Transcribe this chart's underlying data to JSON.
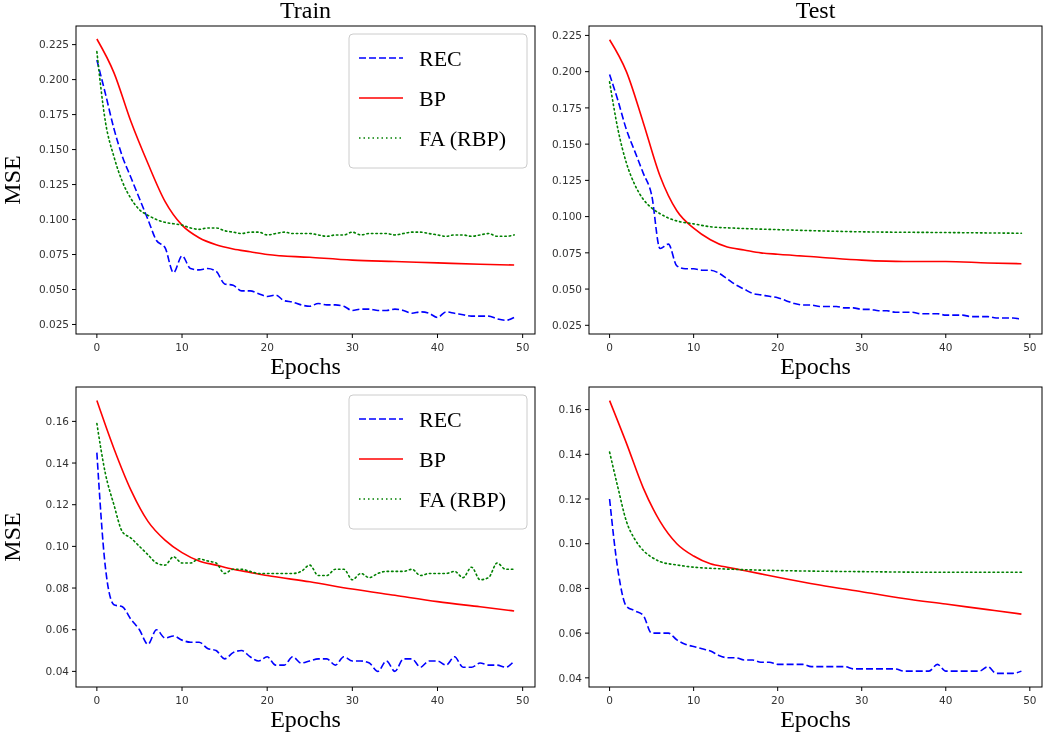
{
  "chart_data": [
    {
      "type": "line",
      "title": "Train",
      "xlabel": "Epochs",
      "ylabel": "MSE",
      "legend": "top right",
      "xlim": [
        -2.45,
        51.45
      ],
      "xticks": [
        0,
        10,
        20,
        30,
        40,
        50
      ],
      "ylim": [
        0.0182,
        0.2383
      ],
      "yticks": [
        {
          "value": 0.025,
          "label": "0.025"
        },
        {
          "value": 0.05,
          "label": "0.050"
        },
        {
          "value": 0.075,
          "label": "0.075"
        },
        {
          "value": 0.1,
          "label": "0.100"
        },
        {
          "value": 0.125,
          "label": "0.125"
        },
        {
          "value": 0.15,
          "label": "0.150"
        },
        {
          "value": 0.175,
          "label": "0.175"
        },
        {
          "value": 0.2,
          "label": "0.200"
        },
        {
          "value": 0.225,
          "label": "0.225"
        }
      ],
      "x": [
        0,
        1,
        2,
        3,
        4,
        5,
        6,
        7,
        8,
        9,
        10,
        11,
        12,
        13,
        14,
        15,
        16,
        17,
        18,
        19,
        20,
        21,
        22,
        23,
        24,
        25,
        26,
        27,
        28,
        29,
        30,
        31,
        32,
        33,
        34,
        35,
        36,
        37,
        38,
        39,
        40,
        41,
        42,
        43,
        44,
        45,
        46,
        47,
        48,
        49
      ],
      "series": [
        {
          "name": "REC",
          "color": "#0000ff",
          "line_style": "dashed",
          "values": [
            0.214,
            0.19,
            0.165,
            0.145,
            0.13,
            0.115,
            0.1,
            0.085,
            0.08,
            0.062,
            0.074,
            0.065,
            0.064,
            0.065,
            0.063,
            0.054,
            0.053,
            0.049,
            0.049,
            0.047,
            0.045,
            0.046,
            0.042,
            0.041,
            0.039,
            0.038,
            0.04,
            0.039,
            0.039,
            0.038,
            0.035,
            0.036,
            0.036,
            0.035,
            0.035,
            0.036,
            0.035,
            0.033,
            0.034,
            0.033,
            0.03,
            0.034,
            0.033,
            0.032,
            0.031,
            0.031,
            0.031,
            0.029,
            0.028,
            0.03
          ]
        },
        {
          "name": "BP",
          "color": "#ff0000",
          "line_style": "solid",
          "x": [
            0,
            2,
            4,
            6,
            8,
            10,
            12,
            14,
            16,
            18,
            20,
            25,
            30,
            35,
            40,
            45,
            49
          ],
          "values": [
            0.229,
            0.205,
            0.17,
            0.14,
            0.113,
            0.096,
            0.087,
            0.082,
            0.079,
            0.077,
            0.075,
            0.073,
            0.071,
            0.07,
            0.069,
            0.068,
            0.0675
          ]
        },
        {
          "name": "FA (RBP)",
          "color": "#008000",
          "line_style": "dotted",
          "values": [
            0.22,
            0.17,
            0.145,
            0.127,
            0.115,
            0.107,
            0.103,
            0.1,
            0.098,
            0.097,
            0.096,
            0.094,
            0.093,
            0.094,
            0.094,
            0.092,
            0.091,
            0.09,
            0.091,
            0.091,
            0.089,
            0.09,
            0.091,
            0.09,
            0.09,
            0.09,
            0.089,
            0.088,
            0.089,
            0.089,
            0.091,
            0.089,
            0.09,
            0.09,
            0.09,
            0.089,
            0.09,
            0.091,
            0.091,
            0.09,
            0.089,
            0.088,
            0.089,
            0.089,
            0.088,
            0.089,
            0.09,
            0.088,
            0.088,
            0.089
          ]
        }
      ]
    },
    {
      "type": "line",
      "title": "Test",
      "xlabel": "Epochs",
      "xlim": [
        -2.45,
        51.45
      ],
      "xticks": [
        0,
        10,
        20,
        30,
        40,
        50
      ],
      "ylim": [
        0.019,
        0.2315
      ],
      "yticks": [
        {
          "value": 0.025,
          "label": "0.025"
        },
        {
          "value": 0.05,
          "label": "0.050"
        },
        {
          "value": 0.075,
          "label": "0.075"
        },
        {
          "value": 0.1,
          "label": "0.100"
        },
        {
          "value": 0.125,
          "label": "0.125"
        },
        {
          "value": 0.15,
          "label": "0.150"
        },
        {
          "value": 0.175,
          "label": "0.175"
        },
        {
          "value": 0.2,
          "label": "0.200"
        },
        {
          "value": 0.225,
          "label": "0.225"
        }
      ],
      "x": [
        0,
        1,
        2,
        3,
        4,
        5,
        6,
        7,
        8,
        9,
        10,
        11,
        12,
        13,
        14,
        15,
        16,
        17,
        18,
        19,
        20,
        21,
        22,
        23,
        24,
        25,
        26,
        27,
        28,
        29,
        30,
        31,
        32,
        33,
        34,
        35,
        36,
        37,
        38,
        39,
        40,
        41,
        42,
        43,
        44,
        45,
        46,
        47,
        48,
        49
      ],
      "series": [
        {
          "color": "#0000ff",
          "line_style": "dashed",
          "values": [
            0.198,
            0.18,
            0.16,
            0.145,
            0.13,
            0.115,
            0.078,
            0.081,
            0.066,
            0.064,
            0.064,
            0.063,
            0.063,
            0.061,
            0.057,
            0.053,
            0.05,
            0.047,
            0.046,
            0.045,
            0.044,
            0.042,
            0.04,
            0.039,
            0.039,
            0.038,
            0.038,
            0.038,
            0.037,
            0.037,
            0.036,
            0.036,
            0.035,
            0.035,
            0.034,
            0.034,
            0.034,
            0.033,
            0.033,
            0.033,
            0.032,
            0.032,
            0.032,
            0.031,
            0.031,
            0.031,
            0.03,
            0.03,
            0.03,
            0.029
          ]
        },
        {
          "color": "#ff0000",
          "line_style": "solid",
          "x": [
            0,
            2,
            4,
            6,
            8,
            10,
            12,
            14,
            16,
            18,
            20,
            25,
            30,
            35,
            40,
            45,
            49
          ],
          "values": [
            0.222,
            0.2,
            0.165,
            0.128,
            0.104,
            0.092,
            0.084,
            0.079,
            0.077,
            0.075,
            0.074,
            0.072,
            0.07,
            0.069,
            0.069,
            0.068,
            0.0675
          ]
        },
        {
          "color": "#008000",
          "line_style": "dotted",
          "x": [
            0,
            1,
            2,
            3,
            4,
            5,
            6,
            7,
            8,
            10,
            12,
            15,
            20,
            30,
            40,
            49
          ],
          "values": [
            0.193,
            0.16,
            0.137,
            0.122,
            0.112,
            0.106,
            0.102,
            0.099,
            0.097,
            0.095,
            0.093,
            0.092,
            0.091,
            0.0895,
            0.089,
            0.0885
          ]
        }
      ]
    },
    {
      "type": "line",
      "xlabel": "Epochs",
      "ylabel": "MSE",
      "legend": "top right",
      "xlim": [
        -2.45,
        51.45
      ],
      "xticks": [
        0,
        10,
        20,
        30,
        40,
        50
      ],
      "ylim": [
        0.0325,
        0.1765
      ],
      "yticks": [
        {
          "value": 0.04,
          "label": "0.04"
        },
        {
          "value": 0.06,
          "label": "0.06"
        },
        {
          "value": 0.08,
          "label": "0.08"
        },
        {
          "value": 0.1,
          "label": "0.10"
        },
        {
          "value": 0.12,
          "label": "0.12"
        },
        {
          "value": 0.14,
          "label": "0.14"
        },
        {
          "value": 0.16,
          "label": "0.16"
        }
      ],
      "x": [
        0,
        1,
        2,
        3,
        4,
        5,
        6,
        7,
        8,
        9,
        10,
        11,
        12,
        13,
        14,
        15,
        16,
        17,
        18,
        19,
        20,
        21,
        22,
        23,
        24,
        25,
        26,
        27,
        28,
        29,
        30,
        31,
        32,
        33,
        34,
        35,
        36,
        37,
        38,
        39,
        40,
        41,
        42,
        43,
        44,
        45,
        46,
        47,
        48,
        49
      ],
      "series": [
        {
          "name": "REC",
          "color": "#0000ff",
          "line_style": "dashed",
          "values": [
            0.145,
            0.09,
            0.072,
            0.071,
            0.065,
            0.06,
            0.053,
            0.06,
            0.056,
            0.057,
            0.055,
            0.054,
            0.054,
            0.051,
            0.05,
            0.046,
            0.049,
            0.05,
            0.047,
            0.045,
            0.047,
            0.043,
            0.043,
            0.047,
            0.044,
            0.045,
            0.046,
            0.046,
            0.043,
            0.047,
            0.045,
            0.045,
            0.044,
            0.04,
            0.045,
            0.04,
            0.046,
            0.046,
            0.042,
            0.045,
            0.045,
            0.043,
            0.047,
            0.042,
            0.042,
            0.044,
            0.043,
            0.043,
            0.042,
            0.045
          ]
        },
        {
          "name": "BP",
          "color": "#ff0000",
          "line_style": "solid",
          "x": [
            0,
            2,
            4,
            6,
            8,
            10,
            12,
            14,
            16,
            18,
            20,
            25,
            30,
            35,
            40,
            45,
            49
          ],
          "values": [
            0.17,
            0.147,
            0.127,
            0.112,
            0.103,
            0.097,
            0.093,
            0.091,
            0.089,
            0.0875,
            0.086,
            0.083,
            0.0795,
            0.0765,
            0.0735,
            0.071,
            0.069
          ]
        },
        {
          "name": "FA (RBP)",
          "color": "#008000",
          "line_style": "dotted",
          "values": [
            0.159,
            0.135,
            0.12,
            0.107,
            0.104,
            0.1,
            0.096,
            0.092,
            0.091,
            0.095,
            0.092,
            0.092,
            0.094,
            0.093,
            0.092,
            0.087,
            0.089,
            0.089,
            0.088,
            0.087,
            0.087,
            0.087,
            0.087,
            0.087,
            0.088,
            0.091,
            0.086,
            0.086,
            0.089,
            0.089,
            0.084,
            0.087,
            0.085,
            0.087,
            0.088,
            0.088,
            0.088,
            0.089,
            0.086,
            0.087,
            0.087,
            0.087,
            0.088,
            0.085,
            0.09,
            0.084,
            0.085,
            0.092,
            0.089,
            0.089
          ]
        }
      ]
    },
    {
      "type": "line",
      "xlabel": "Epochs",
      "xlim": [
        -2.45,
        51.45
      ],
      "xticks": [
        0,
        10,
        20,
        30,
        40,
        50
      ],
      "ylim": [
        0.0359,
        0.1701
      ],
      "yticks": [
        {
          "value": 0.04,
          "label": "0.04"
        },
        {
          "value": 0.06,
          "label": "0.06"
        },
        {
          "value": 0.08,
          "label": "0.08"
        },
        {
          "value": 0.1,
          "label": "0.10"
        },
        {
          "value": 0.12,
          "label": "0.12"
        },
        {
          "value": 0.14,
          "label": "0.14"
        },
        {
          "value": 0.16,
          "label": "0.16"
        }
      ],
      "x": [
        0,
        1,
        2,
        3,
        4,
        5,
        6,
        7,
        8,
        9,
        10,
        11,
        12,
        13,
        14,
        15,
        16,
        17,
        18,
        19,
        20,
        21,
        22,
        23,
        24,
        25,
        26,
        27,
        28,
        29,
        30,
        31,
        32,
        33,
        34,
        35,
        36,
        37,
        38,
        39,
        40,
        41,
        42,
        43,
        44,
        45,
        46,
        47,
        48,
        49
      ],
      "series": [
        {
          "color": "#0000ff",
          "line_style": "dashed",
          "values": [
            0.12,
            0.088,
            0.072,
            0.07,
            0.068,
            0.06,
            0.06,
            0.06,
            0.057,
            0.055,
            0.054,
            0.053,
            0.052,
            0.05,
            0.049,
            0.049,
            0.048,
            0.048,
            0.047,
            0.047,
            0.046,
            0.046,
            0.046,
            0.046,
            0.045,
            0.045,
            0.045,
            0.045,
            0.045,
            0.044,
            0.044,
            0.044,
            0.044,
            0.044,
            0.044,
            0.043,
            0.043,
            0.043,
            0.043,
            0.046,
            0.043,
            0.043,
            0.043,
            0.043,
            0.043,
            0.045,
            0.042,
            0.042,
            0.042,
            0.043
          ]
        },
        {
          "color": "#ff0000",
          "line_style": "solid",
          "x": [
            0,
            2,
            4,
            6,
            8,
            10,
            12,
            14,
            16,
            18,
            20,
            25,
            30,
            35,
            40,
            45,
            49
          ],
          "values": [
            0.164,
            0.145,
            0.125,
            0.11,
            0.1,
            0.0945,
            0.091,
            0.0895,
            0.088,
            0.0865,
            0.085,
            0.0815,
            0.0785,
            0.0755,
            0.073,
            0.0705,
            0.0685
          ]
        },
        {
          "color": "#008000",
          "line_style": "dotted",
          "x": [
            0,
            1,
            2,
            3,
            4,
            5,
            6,
            8,
            10,
            12,
            15,
            20,
            30,
            40,
            49
          ],
          "values": [
            0.141,
            0.125,
            0.11,
            0.102,
            0.097,
            0.094,
            0.092,
            0.0905,
            0.0895,
            0.089,
            0.0885,
            0.088,
            0.0875,
            0.0872,
            0.0872
          ]
        }
      ]
    }
  ]
}
